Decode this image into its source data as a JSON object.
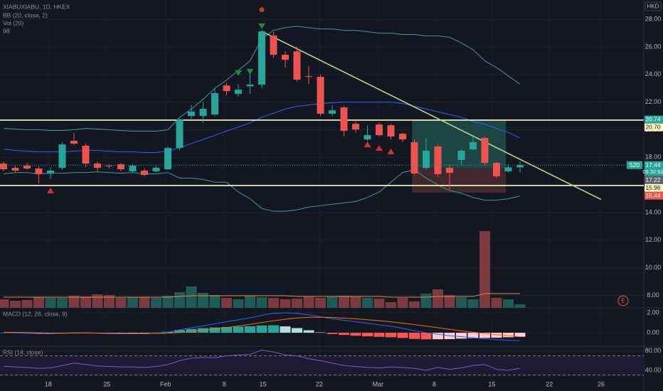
{
  "chart_data": {
    "type": "candlestick",
    "symbol": "XIABUXIABU, 1D, HKEX",
    "indicator_labels": [
      "BB (20, close, 2)",
      "Vol (20)",
      "98"
    ],
    "currency": "HKD",
    "earnings_label": "E",
    "up_color": "#26a69a",
    "down_color": "#ef5350",
    "ylim": [
      7.1,
      29.4
    ],
    "yticks": [
      {
        "value": 8,
        "label": "8.00"
      },
      {
        "value": 10,
        "label": "10.00"
      },
      {
        "value": 12,
        "label": "12.00"
      },
      {
        "value": 14,
        "label": "14.00"
      },
      {
        "value": 16,
        "label": "16.00"
      },
      {
        "value": 18,
        "label": "18.00"
      },
      {
        "value": 20,
        "label": "20.00"
      },
      {
        "value": 22,
        "label": "22.00"
      },
      {
        "value": 24,
        "label": "24.00"
      },
      {
        "value": 26,
        "label": "26.00"
      },
      {
        "value": 28,
        "label": "28.00"
      }
    ],
    "xticks": [
      {
        "value": 3.8,
        "label": "18"
      },
      {
        "value": 8.8,
        "label": "25"
      },
      {
        "value": 13.8,
        "label": "Feb"
      },
      {
        "value": 18.8,
        "label": "8"
      },
      {
        "value": 22.1,
        "label": "15"
      },
      {
        "value": 26.9,
        "label": "22"
      },
      {
        "value": 31.9,
        "label": "Mar"
      },
      {
        "value": 36.7,
        "label": "8"
      },
      {
        "value": 41.6,
        "label": "15"
      },
      {
        "value": 46.5,
        "label": "22"
      },
      {
        "value": 50.9,
        "label": "26"
      }
    ],
    "open": [
      17.55,
      17.24,
      17.4,
      17.19,
      16.83,
      17.24,
      19.2,
      18.84,
      17.55,
      17.4,
      17.5,
      16.99,
      17.04,
      16.99,
      17.14,
      18.68,
      21.0,
      21.0,
      21.1,
      23.21,
      22.6,
      23.15,
      23.27,
      26.82,
      25.43,
      25.68,
      23.88,
      23.83,
      21.16,
      21.62,
      20.43,
      19.3,
      20.38,
      20.33,
      19.71,
      19.1,
      17.24,
      18.79,
      17.24,
      17.81,
      18.58,
      19.41,
      17.6,
      16.99,
      17.28
    ],
    "high": [
      17.7,
      17.4,
      17.6,
      17.35,
      17.3,
      19.1,
      19.77,
      19.0,
      17.7,
      17.5,
      17.6,
      17.5,
      17.2,
      17.35,
      18.8,
      20.8,
      21.8,
      22.0,
      23.0,
      23.4,
      23.3,
      24.0,
      27.2,
      27.1,
      25.7,
      26.0,
      24.6,
      24.0,
      21.8,
      21.7,
      20.6,
      20.3,
      20.5,
      20.4,
      19.8,
      19.3,
      19.4,
      18.9,
      17.5,
      18.6,
      19.5,
      19.5,
      17.7,
      17.5,
      17.7
    ],
    "low": [
      17.0,
      16.95,
      17.1,
      16.11,
      16.4,
      17.1,
      18.9,
      17.3,
      17.0,
      17.2,
      17.0,
      16.9,
      16.6,
      16.9,
      17.1,
      18.5,
      20.8,
      20.5,
      21.0,
      22.5,
      22.4,
      22.6,
      23.0,
      25.2,
      24.5,
      23.5,
      23.3,
      21.0,
      21.0,
      19.5,
      19.8,
      19.2,
      19.5,
      19.3,
      19.1,
      16.7,
      17.1,
      16.6,
      15.7,
      17.4,
      18.5,
      17.4,
      16.5,
      16.9,
      16.9
    ],
    "close": [
      17.14,
      17.04,
      17.19,
      16.78,
      17.04,
      18.94,
      18.99,
      17.55,
      17.24,
      17.36,
      17.14,
      17.4,
      16.73,
      17.24,
      18.68,
      20.74,
      21.31,
      21.52,
      22.65,
      22.8,
      22.9,
      23.27,
      27.13,
      25.43,
      25.07,
      23.63,
      23.83,
      21.16,
      21.41,
      19.92,
      20.02,
      19.61,
      19.61,
      19.51,
      19.3,
      16.83,
      18.48,
      16.78,
      16.88,
      18.48,
      19.1,
      17.6,
      16.63,
      17.28,
      17.44
    ],
    "bollinger": {
      "color": "#2962ff",
      "band_color": "#3d9a9b",
      "upper": [
        20.1,
        20.05,
        20.0,
        20.0,
        19.95,
        19.95,
        20.0,
        20.1,
        20.05,
        20.0,
        19.95,
        19.9,
        19.9,
        19.9,
        20.0,
        20.9,
        21.5,
        22.2,
        23.0,
        23.6,
        24.3,
        25.0,
        26.6,
        27.2,
        27.4,
        27.5,
        27.4,
        27.3,
        27.3,
        27.2,
        27.2,
        27.1,
        27.0,
        27.0,
        26.9,
        26.9,
        26.8,
        26.8,
        26.7,
        26.3,
        25.8,
        25.0,
        24.5,
        23.9,
        23.3
      ],
      "middle": [
        18.6,
        18.5,
        18.45,
        18.4,
        18.4,
        18.4,
        18.45,
        18.5,
        18.5,
        18.45,
        18.4,
        18.4,
        18.35,
        18.35,
        18.45,
        18.7,
        19.0,
        19.3,
        19.6,
        19.9,
        20.2,
        20.5,
        20.9,
        21.2,
        21.5,
        21.7,
        21.8,
        21.9,
        21.95,
        22.0,
        22.0,
        22.0,
        22.0,
        22.0,
        21.9,
        21.7,
        21.5,
        21.3,
        21.1,
        20.9,
        20.6,
        20.4,
        20.1,
        19.8,
        19.4
      ],
      "lower": [
        16.8,
        16.9,
        16.9,
        16.8,
        16.85,
        16.85,
        16.9,
        16.9,
        16.95,
        16.9,
        16.85,
        16.9,
        16.8,
        16.8,
        16.9,
        16.5,
        16.5,
        16.4,
        16.2,
        16.2,
        15.5,
        15.0,
        14.3,
        14.1,
        14.1,
        14.2,
        14.4,
        14.5,
        14.6,
        14.7,
        14.8,
        15.1,
        15.5,
        16.2,
        16.9,
        17.1,
        16.5,
        16.0,
        15.6,
        15.4,
        15.1,
        14.9,
        14.9,
        15.0,
        15.2
      ]
    },
    "hlines": [
      {
        "value": 20.7,
        "color": "#fff9c4"
      },
      {
        "value": 15.96,
        "color": "#fff9c4"
      }
    ],
    "trendline": {
      "x": [
        22,
        50.9
      ],
      "values": [
        27.13,
        14.95
      ],
      "color": "#b5d68f"
    },
    "position": {
      "x": [
        34.8,
        42.8
      ],
      "target": 20.74,
      "entry": 17.22,
      "stop": 15.44,
      "profit_color": "#1f4d4a",
      "loss_color": "#4a2a30"
    },
    "signals": [
      {
        "shape": "down",
        "color": "#1b8a3a",
        "x": [
          20,
          21,
          22
        ],
        "values": [
          24.1,
          24.2,
          27.5
        ]
      },
      {
        "shape": "up",
        "color": "#d32f2f",
        "x": [
          4,
          31,
          32,
          33
        ],
        "values": [
          15.6,
          18.94,
          18.68,
          18.43
        ]
      },
      {
        "shape": "circle",
        "color": "#c0392b",
        "x": [
          22
        ],
        "values": [
          28.7
        ]
      }
    ],
    "price_tags": [
      {
        "value": 20.74,
        "label": "20.74",
        "color": "#26a69a",
        "text_color": "#ffffff"
      },
      {
        "value": 20.7,
        "label": "20.70",
        "color": "#fff9c4",
        "text_color": "#131722"
      },
      {
        "value": 17.44,
        "label": "17.44",
        "color": "#26a69a",
        "text_color": "#ffffff",
        "countdown": "05:32:52",
        "quantity": "520"
      },
      {
        "value": 17.22,
        "label": "17.22",
        "color": "#5d606b",
        "text_color": "#ffffff"
      },
      {
        "value": 15.96,
        "label": "15.96",
        "color": "#fff9c4",
        "text_color": "#131722"
      },
      {
        "value": 15.44,
        "label": "15.44",
        "color": "#ef5350",
        "text_color": "#ffffff"
      }
    ],
    "volume": {
      "vlim": [
        0,
        120
      ],
      "up_color": "#1e5b57",
      "down_color": "#7b3a3d",
      "ma_color": "#e08a3c",
      "values": [
        12,
        10,
        11,
        15,
        14,
        14,
        17,
        16,
        19,
        18,
        14,
        15,
        15,
        14,
        17,
        22,
        30,
        21,
        18,
        14,
        12,
        17,
        15,
        14,
        12,
        13,
        16,
        14,
        16,
        17,
        16,
        14,
        13,
        8,
        14,
        9,
        20,
        26,
        18,
        15,
        12,
        108,
        14,
        12,
        5
      ],
      "ma": [
        15,
        15,
        15,
        15,
        15,
        15,
        15,
        15,
        15,
        15,
        15,
        15,
        15,
        15,
        15,
        16,
        17,
        17,
        17,
        17,
        17,
        17,
        17,
        17,
        17,
        16,
        16,
        16,
        16,
        16,
        16,
        16,
        16,
        15,
        15,
        15,
        15,
        16,
        16,
        16,
        16,
        20,
        20,
        20,
        20
      ]
    },
    "macd": {
      "label": "MACD (12, 26, close, 9)",
      "ylim": [
        -1.35,
        2.5
      ],
      "yticks": [
        {
          "value": 2,
          "label": "2.00"
        },
        {
          "value": 0,
          "label": "0.00"
        }
      ],
      "macd_color": "#2962ff",
      "signal_color": "#ff6d00",
      "hist_colors": [
        "#26a69a",
        "#b2dfdb",
        "#ffcdd2",
        "#ff5252"
      ],
      "macd": [
        0.05,
        0,
        -0.05,
        -0.1,
        -0.1,
        -0.05,
        0,
        0,
        -0.05,
        -0.1,
        -0.1,
        -0.1,
        -0.1,
        -0.05,
        0.05,
        0.3,
        0.5,
        0.7,
        0.9,
        1.1,
        1.3,
        1.5,
        1.75,
        1.95,
        2.0,
        1.95,
        1.8,
        1.6,
        1.4,
        1.25,
        1.1,
        0.95,
        0.8,
        0.65,
        0.45,
        0.2,
        0,
        -0.15,
        -0.3,
        -0.4,
        -0.5,
        -0.6,
        -0.7,
        -0.75,
        -0.8
      ],
      "signal": [
        0.05,
        0.04,
        0.02,
        0,
        -0.03,
        -0.04,
        -0.03,
        -0.02,
        -0.03,
        -0.04,
        -0.05,
        -0.06,
        -0.07,
        -0.07,
        -0.05,
        0.02,
        0.12,
        0.24,
        0.37,
        0.52,
        0.68,
        0.84,
        1.02,
        1.2,
        1.36,
        1.48,
        1.55,
        1.56,
        1.53,
        1.47,
        1.4,
        1.31,
        1.21,
        1.1,
        0.97,
        0.82,
        0.66,
        0.5,
        0.34,
        0.19,
        0.05,
        -0.08,
        -0.2,
        -0.3,
        -0.4
      ],
      "histogram": [
        0,
        -0.04,
        -0.07,
        -0.1,
        -0.07,
        -0.01,
        0.03,
        0.02,
        -0.02,
        -0.06,
        -0.05,
        -0.04,
        -0.03,
        0.02,
        0.1,
        0.28,
        0.38,
        0.46,
        0.53,
        0.58,
        0.62,
        0.66,
        0.73,
        0.75,
        0.64,
        0.47,
        0.25,
        0.04,
        -0.13,
        -0.22,
        -0.3,
        -0.36,
        -0.41,
        -0.45,
        -0.52,
        -0.62,
        -0.66,
        -0.65,
        -0.64,
        -0.59,
        -0.55,
        -0.52,
        -0.5,
        -0.45,
        -0.4
      ]
    },
    "rsi": {
      "label": "RSI (14, close)",
      "ylim": [
        0,
        90
      ],
      "yticks": [
        {
          "value": 80,
          "label": "80.00"
        },
        {
          "value": 40,
          "label": "40.00"
        }
      ],
      "bands": [
        70,
        30
      ],
      "color": "#7e57c2",
      "band_fill": "#1f1a33",
      "values": [
        48,
        47,
        46,
        44,
        45,
        50,
        55,
        52,
        49,
        48,
        47,
        47,
        46,
        48,
        52,
        60,
        65,
        67,
        66,
        70,
        72,
        73,
        82,
        78,
        72,
        70,
        64,
        60,
        55,
        50,
        48,
        46,
        45,
        47,
        46,
        44,
        40,
        46,
        42,
        45,
        50,
        52,
        42,
        40,
        44
      ]
    }
  }
}
